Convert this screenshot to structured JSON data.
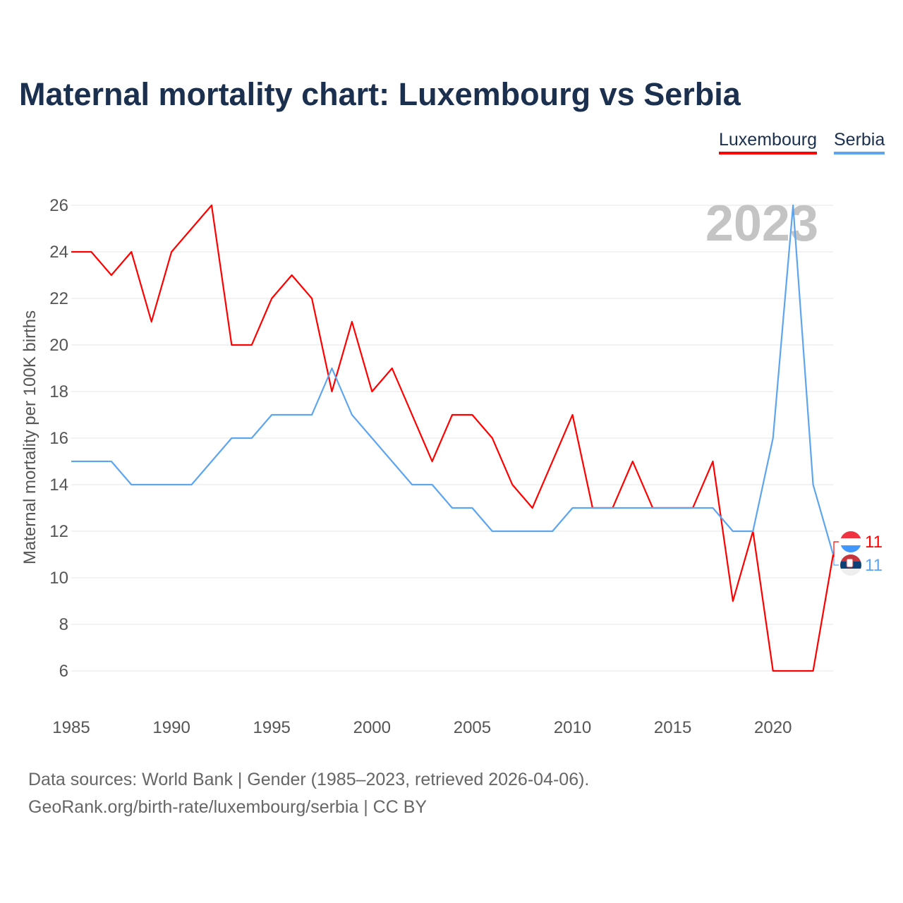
{
  "chart_data": {
    "type": "line",
    "title": "Maternal mortality chart: Luxembourg vs Serbia",
    "xlabel": "",
    "ylabel": "Maternal mortality per 100K births",
    "xlim": [
      1985,
      2023
    ],
    "ylim": [
      4,
      26.5
    ],
    "x_ticks": [
      "1985",
      "1990",
      "1995",
      "2000",
      "2005",
      "2010",
      "2015",
      "2020"
    ],
    "y_ticks": [
      "6",
      "8",
      "10",
      "12",
      "14",
      "16",
      "18",
      "20",
      "22",
      "24",
      "26"
    ],
    "grid": true,
    "legend_position": "top-right",
    "current_year": "2023",
    "x": [
      1985,
      1986,
      1987,
      1988,
      1989,
      1990,
      1991,
      1992,
      1993,
      1994,
      1995,
      1996,
      1997,
      1998,
      1999,
      2000,
      2001,
      2002,
      2003,
      2004,
      2005,
      2006,
      2007,
      2008,
      2009,
      2010,
      2011,
      2012,
      2013,
      2014,
      2015,
      2016,
      2017,
      2018,
      2019,
      2020,
      2021,
      2022,
      2023
    ],
    "series": [
      {
        "name": "Luxembourg",
        "color": "#ff0000",
        "end_label": "11",
        "values": [
          24,
          24,
          23,
          24,
          21,
          24,
          25,
          26,
          20,
          20,
          22,
          23,
          22,
          18,
          21,
          18,
          19,
          17,
          15,
          17,
          17,
          16,
          14,
          13,
          15,
          17,
          13,
          13,
          15,
          13,
          13,
          13,
          15,
          9,
          12,
          6,
          6,
          6,
          11
        ]
      },
      {
        "name": "Serbia",
        "color": "#5da5ee",
        "end_label": "11",
        "values": [
          15,
          15,
          15,
          14,
          14,
          14,
          14,
          15,
          16,
          16,
          17,
          17,
          17,
          19,
          17,
          16,
          15,
          14,
          14,
          13,
          13,
          12,
          12,
          12,
          12,
          13,
          13,
          13,
          13,
          13,
          13,
          13,
          13,
          12,
          12,
          16,
          26,
          14,
          11
        ]
      }
    ]
  },
  "footer": {
    "line1": "Data sources: World Bank | Gender (1985–2023, retrieved 2026-04-06).",
    "line2": "GeoRank.org/birth-rate/luxembourg/serbia | CC BY"
  }
}
